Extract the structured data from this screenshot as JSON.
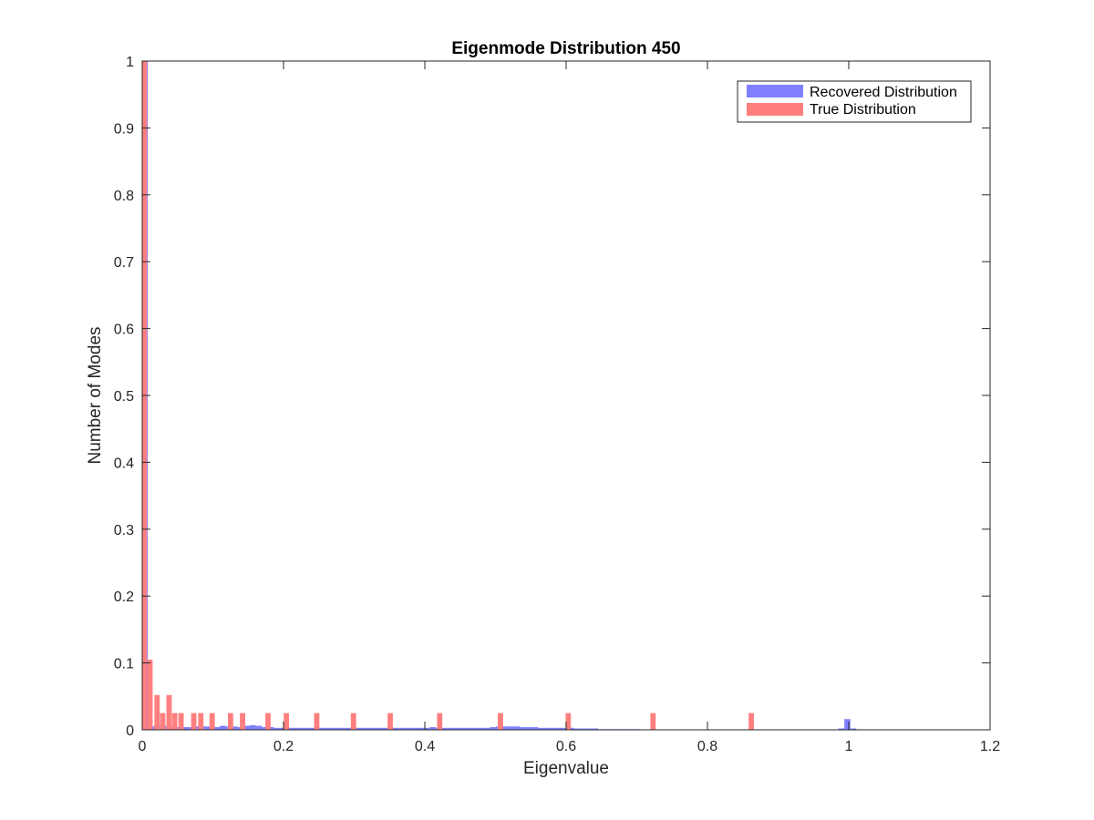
{
  "chart_data": {
    "type": "bar",
    "title": "Eigenmode Distribution 450",
    "xlabel": "Eigenvalue",
    "ylabel": "Number of Modes",
    "xlim": [
      0,
      1.2
    ],
    "ylim": [
      0,
      1
    ],
    "xticks": [
      "0",
      "0.2",
      "0.4",
      "0.6",
      "0.8",
      "1",
      "1.2"
    ],
    "yticks": [
      "0",
      "0.1",
      "0.2",
      "0.3",
      "0.4",
      "0.5",
      "0.6",
      "0.7",
      "0.8",
      "0.9",
      "1"
    ],
    "grid": false,
    "legend": {
      "location": "top-right"
    },
    "series": [
      {
        "name": "Recovered Distribution",
        "color": "#7f7fff",
        "bin_width": 0.0085,
        "x": [
          0.0035,
          0.012,
          0.0205,
          0.029,
          0.0375,
          0.046,
          0.0545,
          0.063,
          0.0715,
          0.08,
          0.0885,
          0.097,
          0.1055,
          0.114,
          0.1225,
          0.131,
          0.1395,
          0.148,
          0.1565,
          0.165,
          0.1735,
          0.182,
          0.1905,
          0.199,
          0.2075,
          0.216,
          0.2245,
          0.233,
          0.2415,
          0.25,
          0.2585,
          0.267,
          0.2755,
          0.284,
          0.2925,
          0.301,
          0.3095,
          0.318,
          0.3265,
          0.335,
          0.3435,
          0.352,
          0.3605,
          0.369,
          0.3775,
          0.386,
          0.3945,
          0.403,
          0.4115,
          0.42,
          0.4285,
          0.437,
          0.4455,
          0.454,
          0.4625,
          0.471,
          0.4795,
          0.488,
          0.4965,
          0.505,
          0.5135,
          0.522,
          0.5305,
          0.539,
          0.5475,
          0.556,
          0.5645,
          0.573,
          0.5815,
          0.59,
          0.5985,
          0.607,
          0.6155,
          0.624,
          0.6325,
          0.641,
          0.6495,
          0.658,
          0.6665,
          0.675,
          0.6835,
          0.692,
          0.7005,
          0.709,
          0.7175,
          0.726,
          0.7345,
          0.743,
          0.7515,
          0.76,
          0.7685,
          0.777,
          0.7855,
          0.794,
          0.8025,
          0.811,
          0.8195,
          0.828,
          0.8365,
          0.845,
          0.8535,
          0.862,
          0.8705,
          0.879,
          0.8875,
          0.896,
          0.9045,
          0.913,
          0.9215,
          0.93,
          0.9385,
          0.947,
          0.9555,
          0.964,
          0.9725,
          0.981,
          0.9895,
          0.998,
          1.0065,
          1.015,
          1.0235,
          1.032,
          1.0405,
          1.049,
          1.0575,
          1.066,
          1.0745,
          1.083,
          1.0915,
          1.1,
          1.1085,
          1.117,
          1.1255,
          1.134,
          1.1425,
          1.151,
          1.1595,
          1.168,
          1.1765,
          1.185,
          1.1935
        ],
        "values": [
          1.0,
          0.005,
          0.006,
          0.007,
          0.005,
          0.004,
          0.004,
          0.004,
          0.004,
          0.005,
          0.005,
          0.005,
          0.004,
          0.006,
          0.005,
          0.005,
          0.004,
          0.006,
          0.007,
          0.006,
          0.004,
          0.004,
          0.003,
          0.003,
          0.003,
          0.003,
          0.003,
          0.003,
          0.003,
          0.003,
          0.003,
          0.003,
          0.003,
          0.003,
          0.003,
          0.003,
          0.003,
          0.003,
          0.003,
          0.003,
          0.003,
          0.003,
          0.003,
          0.003,
          0.003,
          0.003,
          0.003,
          0.003,
          0.004,
          0.003,
          0.003,
          0.003,
          0.003,
          0.003,
          0.003,
          0.003,
          0.003,
          0.003,
          0.004,
          0.005,
          0.005,
          0.005,
          0.005,
          0.004,
          0.004,
          0.004,
          0.003,
          0.003,
          0.003,
          0.003,
          0.003,
          0.003,
          0.002,
          0.002,
          0.002,
          0.002,
          0.001,
          0.001,
          0.001,
          0.001,
          0.001,
          0.001,
          0.001,
          0.0,
          0.0,
          0.0,
          0.0,
          0.0,
          0.0,
          0.0,
          0.0,
          0.0,
          0.0,
          0.0,
          0.0,
          0.0,
          0.0,
          0.0,
          0.0,
          0.0,
          0.0,
          0.0,
          0.0,
          0.0,
          0.0,
          0.0,
          0.0,
          0.0,
          0.0,
          0.0,
          0.0,
          0.0,
          0.0,
          0.0,
          0.0,
          0.0,
          0.002,
          0.016,
          0.002,
          0.0,
          0.0,
          0.0,
          0.0,
          0.0,
          0.0,
          0.0,
          0.0,
          0.0,
          0.0,
          0.0,
          0.0,
          0.0,
          0.0,
          0.0,
          0.0,
          0.0,
          0.0,
          0.0,
          0.0,
          0.0,
          0.0
        ]
      },
      {
        "name": "True Distribution",
        "color": "#ff7f7f",
        "bin_width": 0.0075,
        "x": [
          0.003,
          0.011,
          0.021,
          0.029,
          0.038,
          0.046,
          0.055,
          0.073,
          0.083,
          0.099,
          0.125,
          0.142,
          0.178,
          0.204,
          0.247,
          0.299,
          0.351,
          0.421,
          0.507,
          0.603,
          0.723,
          0.862
        ],
        "values": [
          1.0,
          0.105,
          0.052,
          0.025,
          0.052,
          0.025,
          0.025,
          0.025,
          0.025,
          0.025,
          0.025,
          0.025,
          0.025,
          0.025,
          0.025,
          0.025,
          0.025,
          0.025,
          0.025,
          0.025,
          0.025,
          0.025
        ]
      }
    ]
  }
}
